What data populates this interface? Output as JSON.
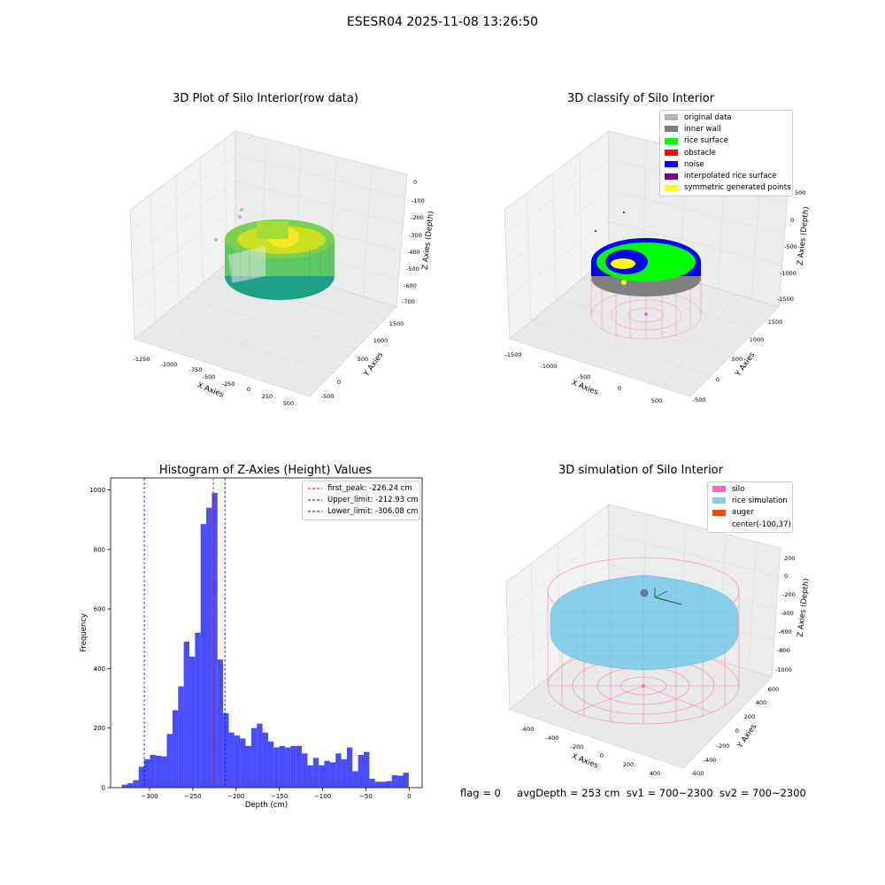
{
  "suptitle": "ESESR04 2025-11-08 13:26:50",
  "status": {
    "flag": "flag = 0",
    "avg_depth": "avgDepth = 253 cm",
    "sv1": "sv1 = 700~2300",
    "sv2": "sv2 = 700~2300"
  },
  "chart_data": [
    {
      "type": "scatter",
      "projection": "3d",
      "title": "3D Plot of Silo Interior(row data)",
      "xlabel": "X Axies",
      "ylabel": "Y Axies",
      "zlabel": "Z Axies (Depth)",
      "xticks": [
        "-1250",
        "-1000",
        "-750",
        "-500",
        "-250",
        "0",
        "250",
        "500"
      ],
      "yticks": [
        "-500",
        "0",
        "500",
        "1000",
        "1500"
      ],
      "zticks": [
        "0",
        "-100",
        "-200",
        "-300",
        "-400",
        "-500",
        "-600",
        "-700"
      ],
      "colormap": "viridis",
      "grid": true
    },
    {
      "type": "scatter",
      "projection": "3d",
      "title": "3D classify of Silo Interior",
      "xlabel": "X Axies",
      "ylabel": "Y Axies",
      "zlabel": "Z Axies (Depth)",
      "xticks": [
        "-1500",
        "-1000",
        "-500",
        "0",
        "500"
      ],
      "yticks": [
        "-500",
        "0",
        "500",
        "1000",
        "1500"
      ],
      "zticks": [
        "500",
        "0",
        "-500",
        "-1000",
        "-1500"
      ],
      "legend_position": "top-right",
      "legend": [
        {
          "label": "original data",
          "color": "#b3b3b3"
        },
        {
          "label": "inner wall",
          "color": "#808080"
        },
        {
          "label": "rice surface",
          "color": "#00ff00"
        },
        {
          "label": "obstacle",
          "color": "#ff0000"
        },
        {
          "label": "noise",
          "color": "#0000ff"
        },
        {
          "label": "interpolated rice surface",
          "color": "#800080"
        },
        {
          "label": "symmetric generated points",
          "color": "#ffff00"
        }
      ],
      "grid": true
    },
    {
      "type": "bar",
      "title": "Histogram of Z-Axies (Height) Values",
      "xlabel": "Depth (cm)",
      "ylabel": "Frequency",
      "xlim": [
        -345,
        15
      ],
      "ylim": [
        0,
        1040
      ],
      "bin_width": 6.5,
      "bins_start": [
        -332,
        -325.5,
        -319,
        -312.5,
        -306,
        -299.5,
        -293,
        -286.5,
        -280,
        -273.5,
        -267,
        -260.5,
        -254,
        -247.5,
        -241,
        -234.5,
        -228,
        -221.5,
        -215,
        -208.5,
        -202,
        -195.5,
        -189,
        -182.5,
        -176,
        -169.5,
        -163,
        -156.5,
        -150,
        -143.5,
        -137,
        -130.5,
        -124,
        -117.5,
        -111,
        -104.5,
        -98,
        -91.5,
        -85,
        -78.5,
        -72,
        -65.5,
        -59,
        -52.5,
        -46,
        -39.5,
        -33,
        -26.5,
        -20,
        -13.5,
        -7
      ],
      "values": [
        10,
        15,
        25,
        70,
        95,
        110,
        107,
        105,
        180,
        260,
        340,
        490,
        440,
        520,
        885,
        940,
        990,
        430,
        250,
        185,
        175,
        165,
        140,
        200,
        215,
        185,
        155,
        135,
        140,
        135,
        140,
        140,
        115,
        75,
        100,
        75,
        90,
        85,
        115,
        95,
        135,
        55,
        110,
        120,
        30,
        20,
        20,
        22,
        42,
        40,
        50
      ],
      "xticks": [
        -300,
        -250,
        -200,
        -150,
        -100,
        -50,
        0
      ],
      "yticks": [
        0,
        200,
        400,
        600,
        800,
        1000
      ],
      "bar_color": "#0000ff",
      "vlines": [
        {
          "label": "first_peak: -226.24 cm",
          "x": -226.24,
          "color": "#ff0000"
        },
        {
          "label": "Upper_limit: -212.93 cm",
          "x": -212.93,
          "color": "#0000ff"
        },
        {
          "label": "Lower_limit: -306.08 cm",
          "x": -306.08,
          "color": "#0000ff"
        }
      ],
      "legend_position": "top-right"
    },
    {
      "type": "surface",
      "projection": "3d",
      "title": "3D simulation of Silo Interior",
      "xlabel": "X Axies",
      "ylabel": "Y Axies",
      "zlabel": "Z Axies (Depth)",
      "xticks": [
        "-600",
        "-400",
        "-200",
        "0",
        "200",
        "400"
      ],
      "yticks": [
        "-600",
        "-400",
        "-200",
        "0",
        "200",
        "400",
        "600"
      ],
      "zticks": [
        "200",
        "0",
        "-200",
        "-400",
        "-600",
        "-800",
        "-1000"
      ],
      "legend_position": "top-right",
      "legend": [
        {
          "label": "silo",
          "color": "#ff69b4"
        },
        {
          "label": "rice simulation",
          "color": "#87ceeb"
        },
        {
          "label": "auger",
          "color": "#ff4500"
        },
        {
          "label": "center(-100,37)",
          "color": ""
        }
      ],
      "grid": true
    }
  ]
}
